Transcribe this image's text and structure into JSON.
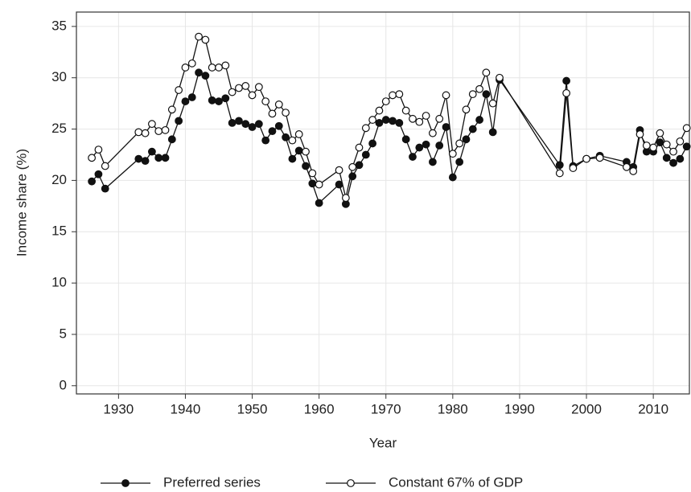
{
  "chart_data": {
    "type": "line",
    "x_label": "Year",
    "y_label": "Income share (%)",
    "x": [
      1926,
      1927,
      1928,
      1933,
      1934,
      1935,
      1936,
      1937,
      1938,
      1939,
      1940,
      1941,
      1942,
      1943,
      1944,
      1945,
      1946,
      1947,
      1948,
      1949,
      1950,
      1951,
      1952,
      1953,
      1954,
      1955,
      1956,
      1957,
      1958,
      1959,
      1960,
      1963,
      1964,
      1965,
      1966,
      1967,
      1968,
      1969,
      1970,
      1971,
      1972,
      1973,
      1974,
      1975,
      1976,
      1977,
      1978,
      1979,
      1980,
      1981,
      1982,
      1983,
      1984,
      1985,
      1986,
      1987,
      1996,
      1997,
      1998,
      2000,
      2002,
      2006,
      2007,
      2008,
      2009,
      2010,
      2011,
      2012,
      2013,
      2014,
      2015
    ],
    "series": [
      {
        "name": "Preferred series",
        "color": "#111111",
        "marker_fill": "#111111",
        "values": [
          19.9,
          20.6,
          19.2,
          22.1,
          21.9,
          22.8,
          22.2,
          22.2,
          24.0,
          25.8,
          27.7,
          28.1,
          30.5,
          30.2,
          27.8,
          27.7,
          28.0,
          25.6,
          25.8,
          25.5,
          25.2,
          25.5,
          23.9,
          24.8,
          25.3,
          24.2,
          22.1,
          22.9,
          21.4,
          19.7,
          17.8,
          19.6,
          17.7,
          20.4,
          21.5,
          22.5,
          23.6,
          25.6,
          25.9,
          25.8,
          25.6,
          24.0,
          22.3,
          23.2,
          23.5,
          21.8,
          23.4,
          25.2,
          20.3,
          21.8,
          24.0,
          25.0,
          25.9,
          28.4,
          24.7,
          29.8,
          21.5,
          29.7,
          21.4,
          22.1,
          22.4,
          21.8,
          21.3,
          24.9,
          22.8,
          22.8,
          23.7,
          22.2,
          21.7,
          22.1,
          23.3
        ]
      },
      {
        "name": "Constant 67% of GDP",
        "color": "#111111",
        "marker_fill": "#ffffff",
        "values": [
          22.2,
          23.0,
          21.4,
          24.7,
          24.6,
          25.5,
          24.8,
          24.9,
          26.9,
          28.8,
          31.0,
          31.4,
          34.0,
          33.7,
          31.0,
          31.0,
          31.2,
          28.6,
          29.0,
          29.2,
          28.3,
          29.1,
          27.7,
          26.5,
          27.4,
          26.6,
          23.9,
          24.5,
          22.8,
          20.7,
          19.6,
          21.0,
          18.3,
          21.3,
          23.2,
          25.1,
          25.9,
          26.8,
          27.7,
          28.3,
          28.4,
          26.8,
          26.0,
          25.7,
          26.3,
          24.6,
          26.0,
          28.3,
          22.6,
          23.6,
          26.9,
          28.4,
          28.9,
          30.5,
          27.5,
          30.0,
          20.7,
          28.5,
          21.2,
          22.1,
          22.2,
          21.3,
          20.9,
          24.5,
          23.4,
          23.2,
          24.6,
          23.5,
          22.8,
          23.8,
          25.1
        ]
      }
    ],
    "xlim": [
      1923.7,
      2015.4
    ],
    "xticks": [
      1930,
      1940,
      1950,
      1960,
      1970,
      1980,
      1990,
      2000,
      2010
    ],
    "ylim": [
      -0.8,
      36.4
    ],
    "yticks": [
      0,
      5,
      10,
      15,
      20,
      25,
      30,
      35
    ],
    "grid": true,
    "legend": "bottom"
  }
}
